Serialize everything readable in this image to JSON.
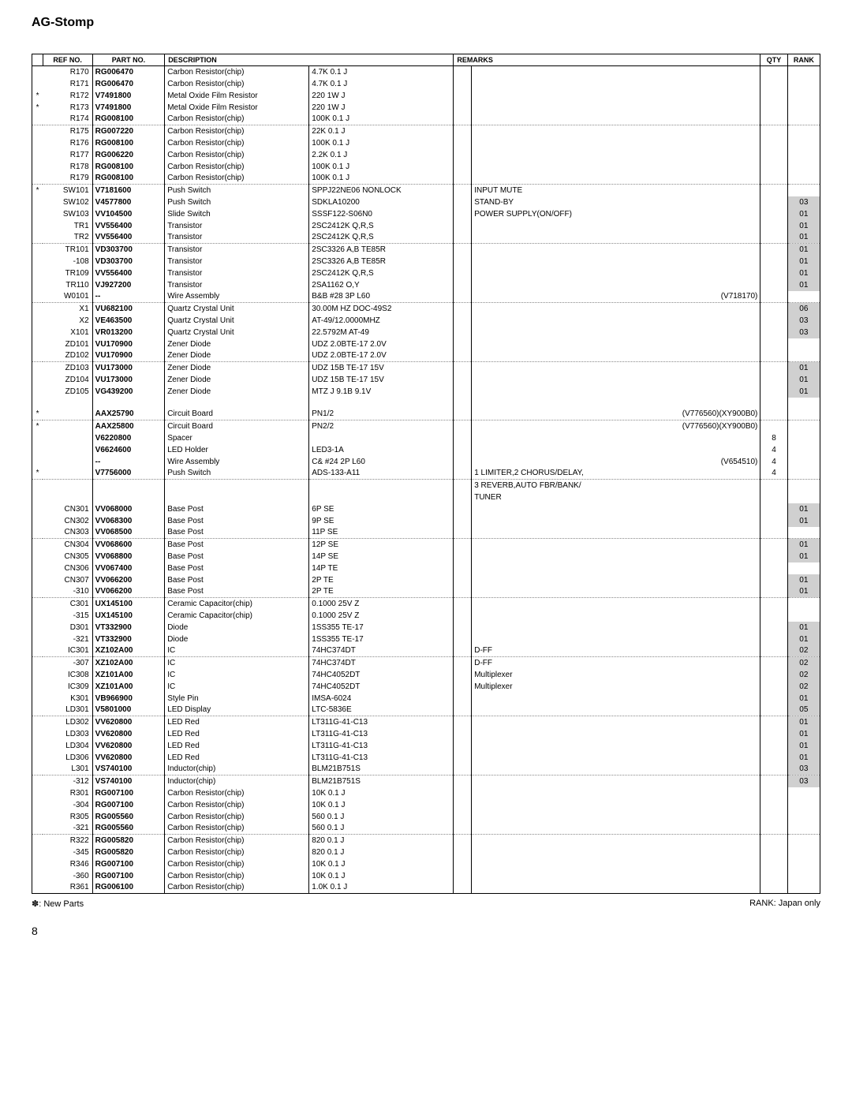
{
  "title": "AG-Stomp",
  "headers": {
    "ref": "REF NO.",
    "part": "PART NO.",
    "desc": "DESCRIPTION",
    "remarks": "REMARKS",
    "qty": "QTY",
    "rank": "RANK"
  },
  "rows": [
    {
      "ast": "",
      "ref": "R170",
      "part": "RG006470",
      "desc1": "Carbon Resistor(chip)",
      "desc2": "4.7K 0.1 J",
      "remarks": "",
      "qty": "",
      "rank": ""
    },
    {
      "ast": "",
      "ref": "R171",
      "part": "RG006470",
      "desc1": "Carbon Resistor(chip)",
      "desc2": "4.7K 0.1 J",
      "remarks": "",
      "qty": "",
      "rank": ""
    },
    {
      "ast": "*",
      "ref": "R172",
      "part": "V7491800",
      "desc1": "Metal Oxide Film Resistor",
      "desc2": "220  1W J",
      "remarks": "",
      "qty": "",
      "rank": ""
    },
    {
      "ast": "*",
      "ref": "R173",
      "part": "V7491800",
      "desc1": "Metal Oxide Film Resistor",
      "desc2": "220  1W J",
      "remarks": "",
      "qty": "",
      "rank": ""
    },
    {
      "ast": "",
      "ref": "R174",
      "part": "RG008100",
      "desc1": "Carbon Resistor(chip)",
      "desc2": "100K 0.1 J",
      "remarks": "",
      "qty": "",
      "rank": "",
      "dotted": true
    },
    {
      "ast": "",
      "ref": "R175",
      "part": "RG007220",
      "desc1": "Carbon Resistor(chip)",
      "desc2": "22K 0.1 J",
      "remarks": "",
      "qty": "",
      "rank": ""
    },
    {
      "ast": "",
      "ref": "R176",
      "part": "RG008100",
      "desc1": "Carbon Resistor(chip)",
      "desc2": "100K 0.1 J",
      "remarks": "",
      "qty": "",
      "rank": ""
    },
    {
      "ast": "",
      "ref": "R177",
      "part": "RG006220",
      "desc1": "Carbon Resistor(chip)",
      "desc2": "2.2K 0.1 J",
      "remarks": "",
      "qty": "",
      "rank": ""
    },
    {
      "ast": "",
      "ref": "R178",
      "part": "RG008100",
      "desc1": "Carbon Resistor(chip)",
      "desc2": "100K 0.1 J",
      "remarks": "",
      "qty": "",
      "rank": ""
    },
    {
      "ast": "",
      "ref": "R179",
      "part": "RG008100",
      "desc1": "Carbon Resistor(chip)",
      "desc2": "100K 0.1 J",
      "remarks": "",
      "qty": "",
      "rank": "",
      "dotted": true
    },
    {
      "ast": "*",
      "ref": "SW101",
      "part": "V7181600",
      "desc1": "Push Switch",
      "desc2": "SPPJ22NE06 NONLOCK",
      "remarks": "INPUT MUTE",
      "qty": "",
      "rank": ""
    },
    {
      "ast": "",
      "ref": "SW102",
      "part": "V4577800",
      "desc1": "Push Switch",
      "desc2": "SDKLA10200",
      "remarks": "STAND-BY",
      "qty": "",
      "rank": "03"
    },
    {
      "ast": "",
      "ref": "SW103",
      "part": "VV104500",
      "desc1": "Slide Switch",
      "desc2": "SSSF122-S06N0",
      "remarks": "POWER SUPPLY(ON/OFF)",
      "qty": "",
      "rank": "01"
    },
    {
      "ast": "",
      "ref": "TR1",
      "part": "VV556400",
      "desc1": "Transistor",
      "desc2": "2SC2412K Q,R,S",
      "remarks": "",
      "qty": "",
      "rank": "01"
    },
    {
      "ast": "",
      "ref": "TR2",
      "part": "VV556400",
      "desc1": "Transistor",
      "desc2": "2SC2412K Q,R,S",
      "remarks": "",
      "qty": "",
      "rank": "01",
      "dotted": true
    },
    {
      "ast": "",
      "ref": "TR101",
      "part": "VD303700",
      "desc1": "Transistor",
      "desc2": "2SC3326 A,B TE85R",
      "remarks": "",
      "qty": "",
      "rank": "01"
    },
    {
      "ast": "",
      "ref": "-108",
      "part": "VD303700",
      "desc1": "Transistor",
      "desc2": "2SC3326 A,B TE85R",
      "remarks": "",
      "qty": "",
      "rank": "01"
    },
    {
      "ast": "",
      "ref": "TR109",
      "part": "VV556400",
      "desc1": "Transistor",
      "desc2": "2SC2412K Q,R,S",
      "remarks": "",
      "qty": "",
      "rank": "01"
    },
    {
      "ast": "",
      "ref": "TR110",
      "part": "VJ927200",
      "desc1": "Transistor",
      "desc2": "2SA1162 O,Y",
      "remarks": "",
      "qty": "",
      "rank": "01"
    },
    {
      "ast": "",
      "ref": "W0101",
      "part": "--",
      "desc1": "Wire Assembly",
      "desc2": "B&B #28  3P L60",
      "remarks": "(V718170)",
      "remAlign": "right",
      "qty": "",
      "rank": "",
      "dotted": true
    },
    {
      "ast": "",
      "ref": "X1",
      "part": "VU682100",
      "desc1": "Quartz Crystal Unit",
      "desc2": "30.00M HZ DOC-49S2",
      "remarks": "",
      "qty": "",
      "rank": "06"
    },
    {
      "ast": "",
      "ref": "X2",
      "part": "VE463500",
      "desc1": "Quartz Crystal Unit",
      "desc2": "AT-49/12.0000MHZ",
      "remarks": "",
      "qty": "",
      "rank": "03"
    },
    {
      "ast": "",
      "ref": "X101",
      "part": "VR013200",
      "desc1": "Quartz Crystal Unit",
      "desc2": "22.5792M AT-49",
      "remarks": "",
      "qty": "",
      "rank": "03"
    },
    {
      "ast": "",
      "ref": "ZD101",
      "part": "VU170900",
      "desc1": "Zener Diode",
      "desc2": "UDZ 2.0BTE-17 2.0V",
      "remarks": "",
      "qty": "",
      "rank": ""
    },
    {
      "ast": "",
      "ref": "ZD102",
      "part": "VU170900",
      "desc1": "Zener Diode",
      "desc2": "UDZ 2.0BTE-17 2.0V",
      "remarks": "",
      "qty": "",
      "rank": "",
      "dotted": true
    },
    {
      "ast": "",
      "ref": "ZD103",
      "part": "VU173000",
      "desc1": "Zener Diode",
      "desc2": "UDZ 15B TE-17  15V",
      "remarks": "",
      "qty": "",
      "rank": "01"
    },
    {
      "ast": "",
      "ref": "ZD104",
      "part": "VU173000",
      "desc1": "Zener Diode",
      "desc2": "UDZ 15B TE-17  15V",
      "remarks": "",
      "qty": "",
      "rank": "01"
    },
    {
      "ast": "",
      "ref": "ZD105",
      "part": "VG439200",
      "desc1": "Zener Diode",
      "desc2": "MTZ J 9.1B   9.1V",
      "remarks": "",
      "qty": "",
      "rank": "01"
    },
    {
      "spacer": true
    },
    {
      "ast": "*",
      "ref": "",
      "part": "AAX25790",
      "desc1": "Circuit Board",
      "desc2": "PN1/2",
      "remarks": "(V776560)(XY900B0)",
      "remAlign": "right",
      "qty": "",
      "rank": "",
      "dotted": true
    },
    {
      "ast": "*",
      "ref": "",
      "part": "AAX25800",
      "desc1": "Circuit Board",
      "desc2": "PN2/2",
      "remarks": "(V776560)(XY900B0)",
      "remAlign": "right",
      "qty": "",
      "rank": ""
    },
    {
      "ast": "",
      "ref": "",
      "part": "V6220800",
      "desc1": "Spacer",
      "desc2": "",
      "remarks": "",
      "qty": "8",
      "rank": ""
    },
    {
      "ast": "",
      "ref": "",
      "part": "V6624600",
      "desc1": "LED Holder",
      "desc2": "LED3-1A",
      "remarks": "",
      "qty": "4",
      "rank": ""
    },
    {
      "ast": "",
      "ref": "",
      "part": "--",
      "desc1": "Wire Assembly",
      "desc2": "C&   #24 2P L60",
      "remarks": "(V654510)",
      "remAlign": "right",
      "qty": "4",
      "rank": ""
    },
    {
      "ast": "*",
      "ref": "",
      "part": "V7756000",
      "desc1": "Push Switch",
      "desc2": "ADS-133-A11",
      "remarks": "1 LIMITER,2 CHORUS/DELAY,",
      "qty": "4",
      "rank": "",
      "dotted": true
    },
    {
      "ast": "",
      "ref": "",
      "part": "",
      "desc1": "",
      "desc2": "",
      "remarks": "3 REVERB,AUTO FBR/BANK/",
      "qty": "",
      "rank": ""
    },
    {
      "ast": "",
      "ref": "",
      "part": "",
      "desc1": "",
      "desc2": "",
      "remarks": "TUNER",
      "qty": "",
      "rank": ""
    },
    {
      "ast": "",
      "ref": "CN301",
      "part": "VV068000",
      "desc1": "Base Post",
      "desc2": "6P SE",
      "remarks": "",
      "qty": "",
      "rank": "01"
    },
    {
      "ast": "",
      "ref": "CN302",
      "part": "VV068300",
      "desc1": "Base Post",
      "desc2": "9P SE",
      "remarks": "",
      "qty": "",
      "rank": "01"
    },
    {
      "ast": "",
      "ref": "CN303",
      "part": "VV068500",
      "desc1": "Base Post",
      "desc2": "11P SE",
      "remarks": "",
      "qty": "",
      "rank": "",
      "dotted": true
    },
    {
      "ast": "",
      "ref": "CN304",
      "part": "VV068600",
      "desc1": "Base Post",
      "desc2": "12P SE",
      "remarks": "",
      "qty": "",
      "rank": "01"
    },
    {
      "ast": "",
      "ref": "CN305",
      "part": "VV068800",
      "desc1": "Base Post",
      "desc2": "14P SE",
      "remarks": "",
      "qty": "",
      "rank": "01"
    },
    {
      "ast": "",
      "ref": "CN306",
      "part": "VV067400",
      "desc1": "Base Post",
      "desc2": "14P TE",
      "remarks": "",
      "qty": "",
      "rank": ""
    },
    {
      "ast": "",
      "ref": "CN307",
      "part": "VV066200",
      "desc1": "Base Post",
      "desc2": "2P TE",
      "remarks": "",
      "qty": "",
      "rank": "01"
    },
    {
      "ast": "",
      "ref": "-310",
      "part": "VV066200",
      "desc1": "Base Post",
      "desc2": "2P TE",
      "remarks": "",
      "qty": "",
      "rank": "01",
      "dotted": true
    },
    {
      "ast": "",
      "ref": "C301",
      "part": "UX145100",
      "desc1": "Ceramic Capacitor(chip)",
      "desc2": "0.1000  25V Z",
      "remarks": "",
      "qty": "",
      "rank": ""
    },
    {
      "ast": "",
      "ref": "-315",
      "part": "UX145100",
      "desc1": "Ceramic Capacitor(chip)",
      "desc2": "0.1000  25V Z",
      "remarks": "",
      "qty": "",
      "rank": ""
    },
    {
      "ast": "",
      "ref": "D301",
      "part": "VT332900",
      "desc1": "Diode",
      "desc2": "1SS355 TE-17",
      "remarks": "",
      "qty": "",
      "rank": "01"
    },
    {
      "ast": "",
      "ref": "-321",
      "part": "VT332900",
      "desc1": "Diode",
      "desc2": "1SS355 TE-17",
      "remarks": "",
      "qty": "",
      "rank": "01"
    },
    {
      "ast": "",
      "ref": "IC301",
      "part": "XZ102A00",
      "desc1": "IC",
      "desc2": "74HC374DT",
      "remarks": "D-FF",
      "qty": "",
      "rank": "02",
      "dotted": true
    },
    {
      "ast": "",
      "ref": "-307",
      "part": "XZ102A00",
      "desc1": "IC",
      "desc2": "74HC374DT",
      "remarks": "D-FF",
      "qty": "",
      "rank": "02"
    },
    {
      "ast": "",
      "ref": "IC308",
      "part": "XZ101A00",
      "desc1": "IC",
      "desc2": "74HC4052DT",
      "remarks": "Multiplexer",
      "qty": "",
      "rank": "02"
    },
    {
      "ast": "",
      "ref": "IC309",
      "part": "XZ101A00",
      "desc1": "IC",
      "desc2": "74HC4052DT",
      "remarks": "Multiplexer",
      "qty": "",
      "rank": "02"
    },
    {
      "ast": "",
      "ref": "K301",
      "part": "VB966900",
      "desc1": "Style Pin",
      "desc2": "IMSA-6024",
      "remarks": "",
      "qty": "",
      "rank": "01"
    },
    {
      "ast": "",
      "ref": "LD301",
      "part": "V5801000",
      "desc1": "LED Display",
      "desc2": "LTC-5836E",
      "remarks": "",
      "qty": "",
      "rank": "05",
      "dotted": true
    },
    {
      "ast": "",
      "ref": "LD302",
      "part": "VV620800",
      "desc1": "LED                     Red",
      "desc2": "LT311G-41-C13",
      "remarks": "",
      "qty": "",
      "rank": "01"
    },
    {
      "ast": "",
      "ref": "LD303",
      "part": "VV620800",
      "desc1": "LED                     Red",
      "desc2": "LT311G-41-C13",
      "remarks": "",
      "qty": "",
      "rank": "01"
    },
    {
      "ast": "",
      "ref": "LD304",
      "part": "VV620800",
      "desc1": "LED                     Red",
      "desc2": "LT311G-41-C13",
      "remarks": "",
      "qty": "",
      "rank": "01"
    },
    {
      "ast": "",
      "ref": "LD306",
      "part": "VV620800",
      "desc1": "LED                     Red",
      "desc2": "LT311G-41-C13",
      "remarks": "",
      "qty": "",
      "rank": "01"
    },
    {
      "ast": "",
      "ref": "L301",
      "part": "VS740100",
      "desc1": "Inductor(chip)",
      "desc2": "BLM21B751S",
      "remarks": "",
      "qty": "",
      "rank": "03",
      "dotted": true
    },
    {
      "ast": "",
      "ref": "-312",
      "part": "VS740100",
      "desc1": "Inductor(chip)",
      "desc2": "BLM21B751S",
      "remarks": "",
      "qty": "",
      "rank": "03"
    },
    {
      "ast": "",
      "ref": "R301",
      "part": "RG007100",
      "desc1": "Carbon Resistor(chip)",
      "desc2": "10K 0.1 J",
      "remarks": "",
      "qty": "",
      "rank": ""
    },
    {
      "ast": "",
      "ref": "-304",
      "part": "RG007100",
      "desc1": "Carbon Resistor(chip)",
      "desc2": "10K 0.1 J",
      "remarks": "",
      "qty": "",
      "rank": ""
    },
    {
      "ast": "",
      "ref": "R305",
      "part": "RG005560",
      "desc1": "Carbon Resistor(chip)",
      "desc2": "560 0.1 J",
      "remarks": "",
      "qty": "",
      "rank": ""
    },
    {
      "ast": "",
      "ref": "-321",
      "part": "RG005560",
      "desc1": "Carbon Resistor(chip)",
      "desc2": "560 0.1 J",
      "remarks": "",
      "qty": "",
      "rank": "",
      "dotted": true
    },
    {
      "ast": "",
      "ref": "R322",
      "part": "RG005820",
      "desc1": "Carbon Resistor(chip)",
      "desc2": "820 0.1 J",
      "remarks": "",
      "qty": "",
      "rank": ""
    },
    {
      "ast": "",
      "ref": "-345",
      "part": "RG005820",
      "desc1": "Carbon Resistor(chip)",
      "desc2": "820 0.1 J",
      "remarks": "",
      "qty": "",
      "rank": ""
    },
    {
      "ast": "",
      "ref": "R346",
      "part": "RG007100",
      "desc1": "Carbon Resistor(chip)",
      "desc2": "10K 0.1 J",
      "remarks": "",
      "qty": "",
      "rank": ""
    },
    {
      "ast": "",
      "ref": "-360",
      "part": "RG007100",
      "desc1": "Carbon Resistor(chip)",
      "desc2": "10K 0.1 J",
      "remarks": "",
      "qty": "",
      "rank": ""
    },
    {
      "ast": "",
      "ref": "R361",
      "part": "RG006100",
      "desc1": "Carbon Resistor(chip)",
      "desc2": "1.0K 0.1 J",
      "remarks": "",
      "qty": "",
      "rank": "",
      "last": true
    }
  ],
  "footer": {
    "left": "✽: New Parts",
    "right": "RANK: Japan only",
    "page": "8"
  }
}
